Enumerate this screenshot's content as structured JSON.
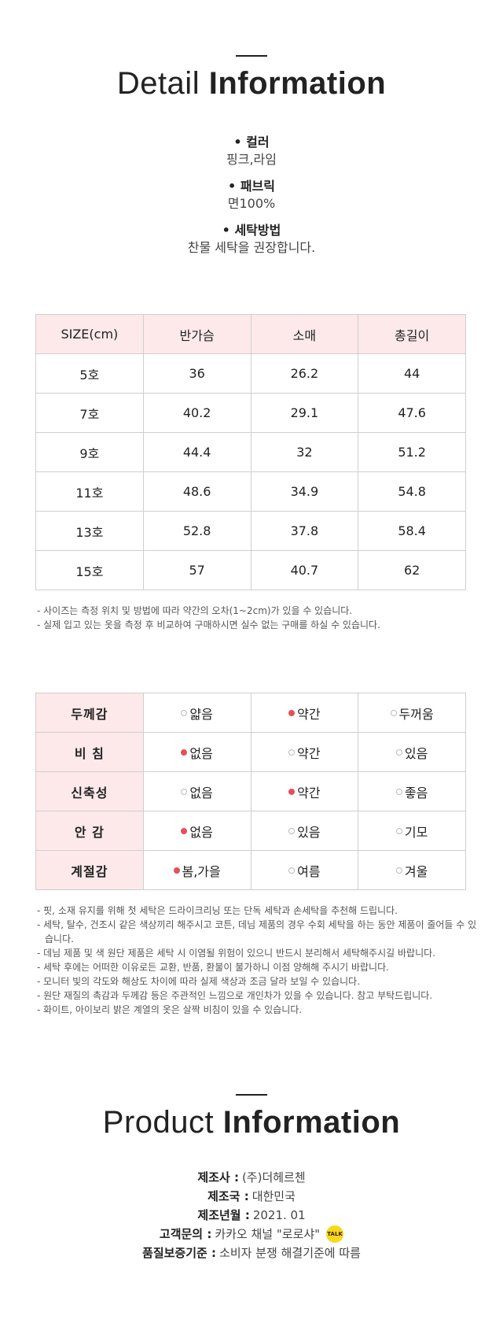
{
  "detail_title": {
    "light": "Detail",
    "bold": "Information"
  },
  "specs": [
    {
      "label": "• 컬러",
      "value": "핑크,라임"
    },
    {
      "label": "• 패브릭",
      "value": "면100%"
    },
    {
      "label": "• 세탁방법",
      "value": "찬물 세탁을 권장합니다."
    }
  ],
  "size_table": {
    "headers": [
      "SIZE(cm)",
      "반가슴",
      "소매",
      "총길이"
    ],
    "rows": [
      [
        "5호",
        "36",
        "26.2",
        "44"
      ],
      [
        "7호",
        "40.2",
        "29.1",
        "47.6"
      ],
      [
        "9호",
        "44.4",
        "32",
        "51.2"
      ],
      [
        "11호",
        "48.6",
        "34.9",
        "54.8"
      ],
      [
        "13호",
        "52.8",
        "37.8",
        "58.4"
      ],
      [
        "15호",
        "57",
        "40.7",
        "62"
      ]
    ]
  },
  "size_notes": [
    "- 사이즈는 측정 위치 및 방법에 따라 약간의 오차(1~2cm)가 있을 수 있습니다.",
    "- 실제 입고 있는 옷을 측정 후 비교하여 구매하시면 실수 없는 구매를 하실 수 있습니다."
  ],
  "feel_table": {
    "rows": [
      {
        "label": "두께감",
        "options": [
          "얇음",
          "약간",
          "두꺼움"
        ],
        "selected": 1
      },
      {
        "label": "비  침",
        "options": [
          "없음",
          "약간",
          "있음"
        ],
        "selected": 0
      },
      {
        "label": "신축성",
        "options": [
          "없음",
          "약간",
          "좋음"
        ],
        "selected": 1
      },
      {
        "label": "안  감",
        "options": [
          "없음",
          "있음",
          "기모"
        ],
        "selected": 0
      },
      {
        "label": "계절감",
        "options": [
          "봄,가을",
          "여름",
          "겨울"
        ],
        "selected": 0
      }
    ]
  },
  "feel_notes": [
    "- 핏, 소재 유지를 위해 첫 세탁은 드라이크리닝 또는 단독 세탁과 손세탁을 추천해 드립니다.",
    "- 세탁, 탈수, 건조시 같은 색상끼리 해주시고 코튼, 데님 제품의 경우 수회 세탁을 하는 동안 제품이 줄어들 수 있습니다.",
    "- 데님 제품 및 색 원단 제품은 세탁 시 이염될 위험이 있으니 반드시 분리해서 세탁해주시길 바랍니다.",
    "- 세탁 후에는 어떠한 이유로든 교환, 반품, 환불이 불가하니 이점 양해해 주시기 바랍니다.",
    "- 모니터 빛의 각도와 해상도 차이에 따라 실제 색상과 조금 달라 보일 수 있습니다.",
    "- 원단 재질의 촉감과 두께감 등은 주관적인 느낌으로 개인차가 있을 수 있습니다. 참고 부탁드립니다.",
    "- 화이트, 아이보리 밝은 계열의 옷은 살짝 비침이 있을 수 있습니다."
  ],
  "product_title": {
    "light": "Product",
    "bold": "Information"
  },
  "product_info": [
    {
      "key": "제조사 :",
      "value": "(주)더헤르첸"
    },
    {
      "key": "제조국 :",
      "value": "대한민국"
    },
    {
      "key": "제조년월 :",
      "value": "2021. 01"
    },
    {
      "key": "고객문의 :",
      "value": "카카오 채널 \"로로샤\"",
      "icon": "kakao-talk-icon",
      "icon_text": "TALK"
    },
    {
      "key": "품질보증기준 :",
      "value": "소비자 분쟁 해결기준에 따름"
    }
  ],
  "colors": {
    "accent_pink_bg": "#fde9ea",
    "selected_dot": "#e84e5a",
    "kakao_yellow": "#f7d81b"
  }
}
